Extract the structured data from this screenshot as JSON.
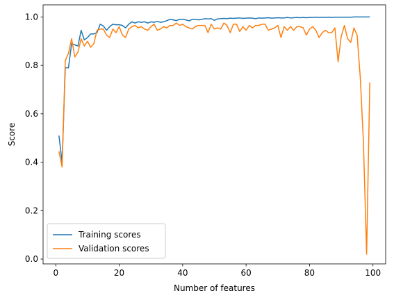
{
  "chart_data": {
    "type": "line",
    "xlabel": "Number of features",
    "ylabel": "Score",
    "xlim": [
      -4,
      104
    ],
    "ylim": [
      -0.02,
      1.05
    ],
    "xticks": [
      0,
      20,
      40,
      60,
      80,
      100
    ],
    "yticks": [
      0.0,
      0.2,
      0.4,
      0.6,
      0.8,
      1.0
    ],
    "ytick_labels": [
      "0.0",
      "0.2",
      "0.4",
      "0.6",
      "0.8",
      "1.0"
    ],
    "grid": false,
    "legend_position": "lower-left",
    "x": [
      1,
      2,
      3,
      4,
      5,
      6,
      7,
      8,
      9,
      10,
      11,
      12,
      13,
      14,
      15,
      16,
      17,
      18,
      19,
      20,
      21,
      22,
      23,
      24,
      25,
      26,
      27,
      28,
      29,
      30,
      31,
      32,
      33,
      34,
      35,
      36,
      37,
      38,
      39,
      40,
      41,
      42,
      43,
      44,
      45,
      46,
      47,
      48,
      49,
      50,
      51,
      52,
      53,
      54,
      55,
      56,
      57,
      58,
      59,
      60,
      61,
      62,
      63,
      64,
      65,
      66,
      67,
      68,
      69,
      70,
      71,
      72,
      73,
      74,
      75,
      76,
      77,
      78,
      79,
      80,
      81,
      82,
      83,
      84,
      85,
      86,
      87,
      88,
      89,
      90,
      91,
      92,
      93,
      94,
      95,
      96,
      97,
      98,
      99
    ],
    "series": [
      {
        "name": "Training scores",
        "color": "#1f77b4",
        "values": [
          0.51,
          0.4,
          0.79,
          0.79,
          0.89,
          0.885,
          0.88,
          0.945,
          0.905,
          0.915,
          0.93,
          0.93,
          0.935,
          0.97,
          0.963,
          0.945,
          0.96,
          0.97,
          0.968,
          0.968,
          0.965,
          0.955,
          0.97,
          0.98,
          0.975,
          0.98,
          0.978,
          0.98,
          0.975,
          0.98,
          0.978,
          0.982,
          0.978,
          0.98,
          0.985,
          0.99,
          0.988,
          0.985,
          0.99,
          0.99,
          0.988,
          0.984,
          0.99,
          0.99,
          0.988,
          0.99,
          0.993,
          0.992,
          0.993,
          0.986,
          0.992,
          0.993,
          0.994,
          0.993,
          0.995,
          0.994,
          0.995,
          0.996,
          0.994,
          0.995,
          0.996,
          0.995,
          0.993,
          0.996,
          0.995,
          0.996,
          0.997,
          0.995,
          0.996,
          0.997,
          0.996,
          0.996,
          0.998,
          0.996,
          0.997,
          0.998,
          0.997,
          0.998,
          0.997,
          0.998,
          0.998,
          0.999,
          0.998,
          0.999,
          0.998,
          0.999,
          0.998,
          0.999,
          0.999,
          0.999,
          0.999,
          0.999,
          0.999,
          1.0,
          1.0,
          1.0,
          1.0,
          1.0,
          1.0
        ]
      },
      {
        "name": "Validation scores",
        "color": "#ff7f0e",
        "values": [
          0.445,
          0.38,
          0.82,
          0.85,
          0.91,
          0.835,
          0.855,
          0.91,
          0.88,
          0.9,
          0.875,
          0.89,
          0.945,
          0.95,
          0.95,
          0.925,
          0.915,
          0.95,
          0.935,
          0.96,
          0.925,
          0.915,
          0.95,
          0.96,
          0.965,
          0.955,
          0.96,
          0.95,
          0.945,
          0.96,
          0.97,
          0.945,
          0.95,
          0.96,
          0.955,
          0.965,
          0.965,
          0.975,
          0.965,
          0.97,
          0.96,
          0.955,
          0.95,
          0.96,
          0.965,
          0.965,
          0.965,
          0.935,
          0.97,
          0.95,
          0.955,
          0.95,
          0.975,
          0.965,
          0.935,
          0.97,
          0.97,
          0.94,
          0.96,
          0.945,
          0.965,
          0.955,
          0.965,
          0.965,
          0.97,
          0.97,
          0.945,
          0.95,
          0.955,
          0.965,
          0.915,
          0.96,
          0.945,
          0.96,
          0.945,
          0.96,
          0.96,
          0.955,
          0.925,
          0.95,
          0.96,
          0.945,
          0.915,
          0.935,
          0.945,
          0.935,
          0.935,
          0.955,
          0.815,
          0.92,
          0.965,
          0.91,
          0.895,
          0.955,
          0.925,
          0.75,
          0.48,
          0.02,
          0.73
        ]
      }
    ]
  }
}
